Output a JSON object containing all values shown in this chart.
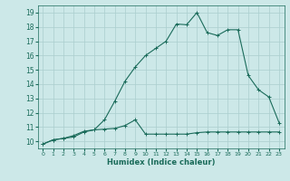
{
  "xlabel": "Humidex (Indice chaleur)",
  "background_color": "#cce8e8",
  "grid_color": "#aacece",
  "line_color": "#1a6b5a",
  "xlim": [
    -0.5,
    23.5
  ],
  "ylim": [
    9.5,
    19.5
  ],
  "xticks": [
    0,
    1,
    2,
    3,
    4,
    5,
    6,
    7,
    8,
    9,
    10,
    11,
    12,
    13,
    14,
    15,
    16,
    17,
    18,
    19,
    20,
    21,
    22,
    23
  ],
  "yticks": [
    10,
    11,
    12,
    13,
    14,
    15,
    16,
    17,
    18,
    19
  ],
  "line1_x": [
    0,
    1,
    2,
    3,
    4,
    5,
    6,
    7,
    8,
    9,
    10,
    11,
    12,
    13,
    14,
    15,
    16,
    17,
    18,
    19,
    20,
    21,
    22,
    23
  ],
  "line1_y": [
    9.8,
    10.1,
    10.2,
    10.4,
    10.7,
    10.8,
    11.5,
    12.8,
    14.2,
    15.2,
    16.0,
    16.5,
    17.0,
    18.2,
    18.15,
    19.0,
    17.6,
    17.4,
    17.8,
    17.8,
    14.6,
    13.6,
    13.1,
    11.3
  ],
  "line2_x": [
    0,
    1,
    2,
    3,
    4,
    5,
    6,
    7,
    8,
    9,
    10,
    11,
    12,
    13,
    14,
    15,
    16,
    17,
    18,
    19,
    20,
    21,
    22,
    23
  ],
  "line2_y": [
    9.8,
    10.1,
    10.2,
    10.3,
    10.65,
    10.8,
    10.85,
    10.9,
    11.1,
    11.5,
    10.5,
    10.5,
    10.5,
    10.5,
    10.5,
    10.6,
    10.65,
    10.65,
    10.65,
    10.65,
    10.65,
    10.65,
    10.65,
    10.65
  ]
}
